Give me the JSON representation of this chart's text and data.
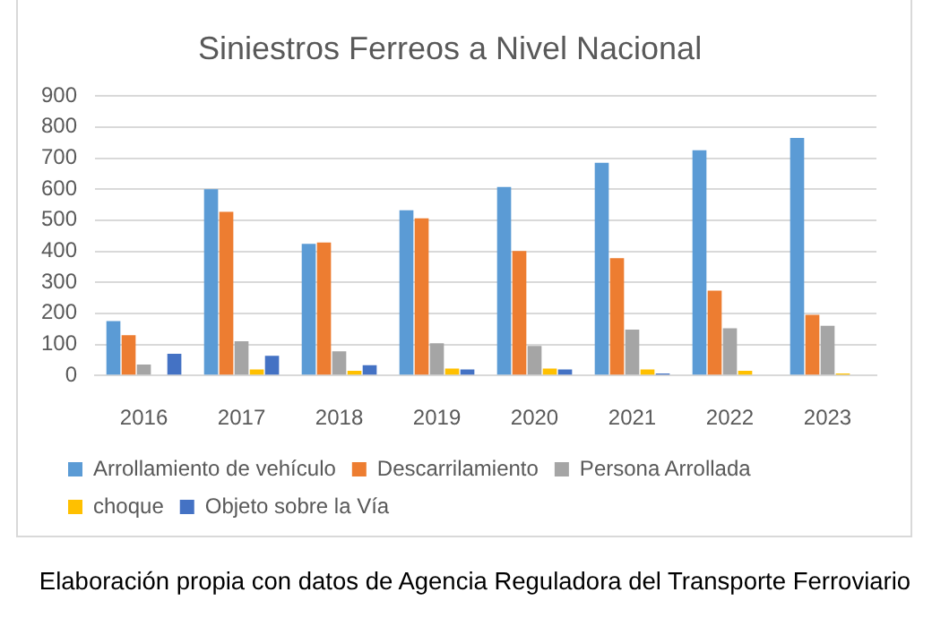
{
  "chart_data": {
    "type": "bar",
    "title": "Siniestros Ferreos a Nivel Nacional",
    "categories": [
      "2016",
      "2017",
      "2018",
      "2019",
      "2020",
      "2021",
      "2022",
      "2023"
    ],
    "series": [
      {
        "name": "Arrollamiento de vehículo",
        "color": "#5b9bd5",
        "values": [
          175,
          600,
          424,
          532,
          607,
          685,
          725,
          765
        ]
      },
      {
        "name": "Descarrilamiento",
        "color": "#ed7d31",
        "values": [
          130,
          527,
          428,
          506,
          401,
          378,
          273,
          195
        ]
      },
      {
        "name": "Persona Arrollada",
        "color": "#a5a5a5",
        "values": [
          35,
          110,
          78,
          104,
          95,
          148,
          152,
          160
        ]
      },
      {
        "name": "choque",
        "color": "#ffc000",
        "values": [
          null,
          19,
          15,
          22,
          22,
          19,
          15,
          6
        ]
      },
      {
        "name": "Objeto sobre la Vía",
        "color": "#4472c4",
        "values": [
          70,
          63,
          33,
          19,
          19,
          6,
          null,
          null
        ]
      }
    ],
    "ylim": [
      0,
      900
    ],
    "yticks": [
      0,
      100,
      200,
      300,
      400,
      500,
      600,
      700,
      800,
      900
    ],
    "grid": "y",
    "legend": "bottom",
    "annotations": [
      "Elaboración propia con datos de Agencia Reguladora del Transporte Ferroviario"
    ]
  }
}
